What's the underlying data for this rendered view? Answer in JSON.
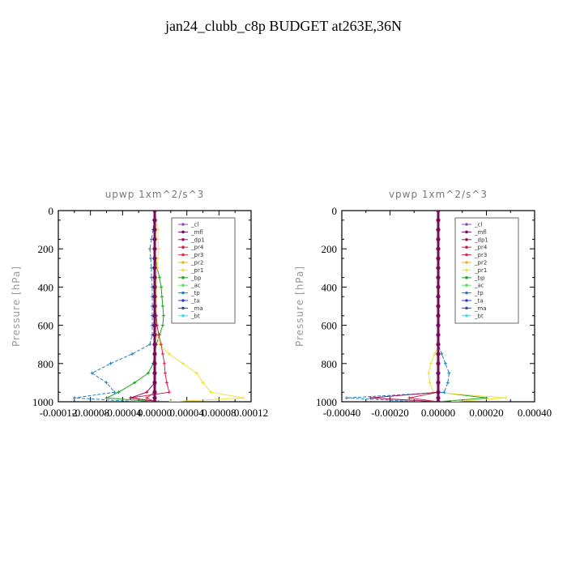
{
  "title": "jan24_clubb_c8p  BUDGET at263E,36N",
  "legend_entries": [
    "_cl",
    "_mfl",
    "_dp1",
    "_pr4",
    "_pr3",
    "_pr2",
    "_pr1",
    "_bp",
    "_ac",
    "_tp",
    "_ta",
    "_ma",
    "_bt"
  ],
  "legend_colors": [
    "#8a4fc0",
    "#7a0a5a",
    "#a0105a",
    "#d02050",
    "#e03040",
    "#f0b030",
    "#f0e040",
    "#20a020",
    "#60e060",
    "#2080c0",
    "#3040c0",
    "#305080",
    "#30e0f0"
  ],
  "chart_data": [
    {
      "type": "line",
      "title": "upwp   1xm^2/s^3",
      "ylabel": "Pressure [hPa]",
      "xlabel": "",
      "xlim": [
        -0.00012,
        0.00012
      ],
      "ylim": [
        1000,
        0
      ],
      "xticks": [
        "-0.00012",
        "-0.00008",
        "-0.00004",
        "0.00000",
        "0.00004",
        "0.00008",
        "0.00012"
      ],
      "yticks": [
        "0",
        "200",
        "400",
        "600",
        "800",
        "1000"
      ],
      "legend_position": "top-right",
      "pressure": [
        0,
        50,
        100,
        150,
        200,
        250,
        300,
        350,
        400,
        450,
        500,
        550,
        600,
        650,
        700,
        750,
        800,
        850,
        900,
        950,
        980,
        1000
      ],
      "series": [
        {
          "name": "_cl",
          "values": [
            0,
            0,
            0,
            0,
            0,
            0,
            0,
            0,
            0,
            0,
            0,
            0,
            0,
            0,
            0,
            0,
            0,
            0,
            0,
            0,
            0,
            0
          ]
        },
        {
          "name": "_mfl",
          "values": [
            0,
            0,
            0,
            0,
            0,
            0,
            0,
            0,
            0,
            0,
            0,
            0,
            0,
            0,
            0,
            0,
            0,
            0,
            0,
            0,
            0,
            0
          ]
        },
        {
          "name": "_dp1",
          "values": [
            0,
            0,
            0,
            0,
            0,
            0,
            0,
            0,
            0,
            0,
            0,
            0,
            0,
            0,
            0,
            0,
            0,
            0,
            0,
            -1e-05,
            -3e-05,
            5e-06
          ]
        },
        {
          "name": "_pr4",
          "values": [
            0,
            0,
            0,
            0,
            0,
            0,
            0,
            0,
            0,
            0,
            0,
            2e-06,
            3e-06,
            5e-06,
            8e-06,
            1e-05,
            1.2e-05,
            1.3e-05,
            1.5e-05,
            1.8e-05,
            -3e-05,
            5e-06
          ]
        },
        {
          "name": "_pr3",
          "values": [
            0,
            0,
            0,
            0,
            0,
            0,
            0,
            0,
            0,
            0,
            0,
            0,
            0,
            0,
            0,
            0,
            0,
            0,
            0,
            0,
            -1e-05,
            0
          ]
        },
        {
          "name": "_pr2",
          "values": [
            0,
            0,
            0,
            0,
            0,
            0,
            0,
            0,
            0,
            0,
            0,
            0,
            0,
            0,
            0,
            0,
            0,
            0,
            0,
            0,
            0,
            0
          ]
        },
        {
          "name": "_pr1",
          "values": [
            0,
            2e-06,
            4e-06,
            4e-06,
            5e-06,
            4e-06,
            3e-06,
            2e-06,
            2e-06,
            2e-06,
            2e-06,
            2e-06,
            2e-06,
            3e-06,
            6e-06,
            1.8e-05,
            3.5e-05,
            5.2e-05,
            6e-05,
            7e-05,
            0.00011,
            2e-05
          ]
        },
        {
          "name": "_bp",
          "values": [
            0,
            0,
            0,
            0,
            0,
            1e-06,
            3e-06,
            6e-06,
            8e-06,
            9e-06,
            1e-05,
            1.1e-05,
            1e-05,
            6e-06,
            2e-06,
            0,
            -2e-06,
            -8e-06,
            -2.5e-05,
            -4.5e-05,
            -6e-05,
            0
          ]
        },
        {
          "name": "_ac",
          "values": [
            0,
            0,
            0,
            0,
            0,
            0,
            0,
            0,
            0,
            0,
            0,
            0,
            0,
            0,
            0,
            0,
            0,
            0,
            0,
            0,
            0,
            0
          ]
        },
        {
          "name": "_tp",
          "values": [
            0,
            -1e-06,
            -2e-06,
            -4e-06,
            -6e-06,
            -5e-06,
            -4e-06,
            -4e-06,
            -3e-06,
            -3e-06,
            -3e-06,
            -3e-06,
            -3e-06,
            -3e-06,
            -6e-06,
            -2.8e-05,
            -5.5e-05,
            -7.8e-05,
            -6e-05,
            -5e-05,
            -0.0001,
            -2e-05
          ]
        },
        {
          "name": "_ta",
          "values": [
            0,
            0,
            0,
            0,
            0,
            0,
            0,
            0,
            0,
            0,
            0,
            0,
            0,
            0,
            0,
            0,
            0,
            0,
            0,
            0,
            0,
            0
          ]
        },
        {
          "name": "_ma",
          "values": [
            0,
            0,
            0,
            0,
            0,
            0,
            0,
            0,
            0,
            0,
            0,
            0,
            0,
            0,
            0,
            0,
            0,
            0,
            0,
            0,
            0,
            0
          ]
        },
        {
          "name": "_bt",
          "values": [
            0,
            0,
            0,
            0,
            0,
            0,
            0,
            0,
            0,
            0,
            0,
            0,
            0,
            0,
            0,
            0,
            0,
            0,
            0,
            0,
            0,
            0
          ]
        }
      ]
    },
    {
      "type": "line",
      "title": "vpwp   1xm^2/s^3",
      "ylabel": "Pressure [hPa]",
      "xlabel": "",
      "xlim": [
        -0.0004,
        0.0004
      ],
      "ylim": [
        1000,
        0
      ],
      "xticks": [
        "-0.00040",
        "-0.00020",
        "0.00000",
        "0.00020",
        "0.00040"
      ],
      "yticks": [
        "0",
        "200",
        "400",
        "600",
        "800",
        "1000"
      ],
      "legend_position": "top-right",
      "pressure": [
        0,
        50,
        100,
        150,
        200,
        250,
        300,
        350,
        400,
        450,
        500,
        550,
        600,
        650,
        700,
        750,
        800,
        850,
        900,
        950,
        980,
        1000
      ],
      "series": [
        {
          "name": "_cl",
          "values": [
            0,
            0,
            0,
            0,
            0,
            0,
            0,
            0,
            0,
            0,
            0,
            0,
            0,
            0,
            0,
            0,
            0,
            0,
            0,
            0,
            0,
            0
          ]
        },
        {
          "name": "_mfl",
          "values": [
            0,
            0,
            0,
            0,
            0,
            0,
            0,
            0,
            0,
            0,
            0,
            0,
            0,
            0,
            0,
            0,
            0,
            0,
            0,
            0,
            0,
            0
          ]
        },
        {
          "name": "_dp1",
          "values": [
            0,
            0,
            0,
            0,
            0,
            0,
            0,
            0,
            0,
            0,
            0,
            0,
            0,
            0,
            0,
            0,
            0,
            0,
            0,
            0,
            -0.00028,
            0
          ]
        },
        {
          "name": "_pr4",
          "values": [
            0,
            0,
            0,
            0,
            0,
            0,
            0,
            0,
            0,
            0,
            0,
            0,
            0,
            0,
            0,
            0,
            0,
            0,
            0,
            0,
            -0.00012,
            0
          ]
        },
        {
          "name": "_pr3",
          "values": [
            0,
            0,
            0,
            0,
            0,
            0,
            0,
            0,
            0,
            0,
            0,
            0,
            0,
            0,
            0,
            0,
            0,
            0,
            0,
            0,
            0,
            0
          ]
        },
        {
          "name": "_pr2",
          "values": [
            0,
            0,
            0,
            0,
            0,
            0,
            0,
            0,
            0,
            0,
            0,
            0,
            0,
            0,
            0,
            0,
            0,
            0,
            0,
            0,
            0,
            0
          ]
        },
        {
          "name": "_pr1",
          "values": [
            0,
            0,
            0,
            0,
            0,
            0,
            0,
            0,
            0,
            0,
            0,
            0,
            0,
            0,
            5e-06,
            -1.5e-05,
            -3e-05,
            -4e-05,
            -3.5e-05,
            -2e-05,
            0.00028,
            6e-05
          ]
        },
        {
          "name": "_bp",
          "values": [
            0,
            0,
            0,
            0,
            0,
            0,
            0,
            0,
            0,
            0,
            0,
            0,
            0,
            0,
            0,
            0,
            0,
            0,
            0,
            0,
            0.0002,
            0
          ]
        },
        {
          "name": "_ac",
          "values": [
            0,
            0,
            0,
            0,
            0,
            0,
            0,
            0,
            0,
            0,
            0,
            0,
            0,
            0,
            0,
            0,
            0,
            0,
            0,
            0,
            0,
            0
          ]
        },
        {
          "name": "_tp",
          "values": [
            0,
            0,
            0,
            0,
            0,
            0,
            0,
            0,
            0,
            0,
            0,
            0,
            0,
            0,
            0,
            1.5e-05,
            3e-05,
            4.5e-05,
            4e-05,
            2.5e-05,
            -0.00038,
            -8e-05
          ]
        },
        {
          "name": "_ta",
          "values": [
            0,
            0,
            0,
            0,
            0,
            0,
            0,
            0,
            0,
            0,
            0,
            0,
            0,
            0,
            0,
            0,
            0,
            0,
            0,
            0,
            0,
            0
          ]
        },
        {
          "name": "_ma",
          "values": [
            0,
            0,
            0,
            0,
            0,
            0,
            0,
            0,
            0,
            0,
            0,
            0,
            0,
            0,
            0,
            0,
            0,
            0,
            0,
            0,
            0,
            0
          ]
        },
        {
          "name": "_bt",
          "values": [
            0,
            0,
            0,
            0,
            0,
            0,
            0,
            0,
            0,
            0,
            0,
            0,
            0,
            0,
            0,
            0,
            0,
            0,
            0,
            0,
            0,
            0
          ]
        }
      ]
    }
  ]
}
